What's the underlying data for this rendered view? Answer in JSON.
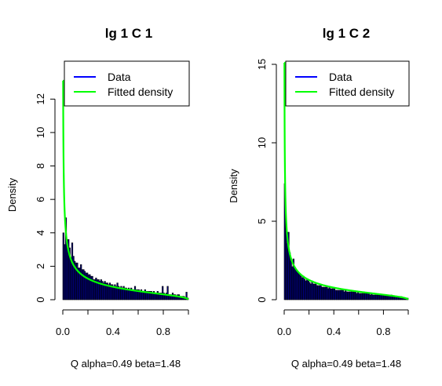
{
  "chart_data": [
    {
      "type": "bar",
      "title": "lg 1 C 1",
      "ylabel": "Density",
      "xlabel": "Q alpha=0.49 beta=1.48",
      "xlim": [
        0,
        1
      ],
      "ylim": [
        0,
        13
      ],
      "xticks": [
        0.0,
        0.4,
        0.8
      ],
      "xtick_labels": [
        "0.0",
        "0.4",
        "0.8"
      ],
      "yticks": [
        0,
        2,
        4,
        6,
        8,
        10,
        12
      ],
      "ytick_labels": [
        "0",
        "2",
        "4",
        "6",
        "8",
        "10",
        "12"
      ],
      "legend": {
        "position": "top-right",
        "entries": [
          {
            "label": "Data",
            "color": "#0000ff"
          },
          {
            "label": "Fitted density",
            "color": "#00ff00"
          }
        ]
      },
      "fit": {
        "alpha": 0.49,
        "beta": 1.48,
        "color": "#00ff00"
      },
      "bar_color": "#00007f",
      "bin_width": 0.01,
      "values": [
        4.0,
        3.3,
        4.9,
        3.6,
        3.6,
        3.1,
        2.5,
        3.4,
        2.6,
        2.3,
        2.2,
        2.2,
        1.9,
        1.9,
        2.1,
        1.8,
        1.8,
        1.7,
        1.6,
        1.6,
        1.5,
        1.5,
        1.4,
        1.4,
        1.2,
        1.2,
        1.3,
        1.2,
        1.2,
        1.1,
        1.2,
        1.1,
        1.0,
        1.1,
        1.0,
        1.0,
        0.9,
        1.0,
        0.9,
        0.9,
        0.8,
        0.9,
        0.8,
        1.0,
        0.8,
        0.7,
        0.8,
        0.7,
        0.8,
        0.7,
        0.7,
        0.6,
        0.7,
        0.6,
        0.7,
        0.6,
        0.6,
        0.8,
        0.6,
        0.6,
        0.6,
        0.5,
        0.6,
        0.5,
        0.5,
        0.6,
        0.5,
        0.5,
        0.5,
        0.5,
        0.5,
        0.4,
        0.5,
        0.4,
        0.4,
        0.5,
        0.4,
        0.4,
        0.4,
        0.8,
        0.4,
        0.3,
        0.4,
        0.8,
        0.3,
        0.3,
        0.3,
        0.4,
        0.3,
        0.3,
        0.2,
        0.3,
        0.3,
        0.2,
        0.2,
        0.2,
        0.2,
        0.1,
        0.45,
        0.1
      ]
    },
    {
      "type": "bar",
      "title": "lg 1 C 2",
      "ylabel": "Density",
      "xlabel": "Q alpha=0.49 beta=1.48",
      "xlim": [
        0,
        1
      ],
      "ylim": [
        0,
        15
      ],
      "xticks": [
        0.0,
        0.4,
        0.8
      ],
      "xtick_labels": [
        "0.0",
        "0.4",
        "0.8"
      ],
      "yticks": [
        0,
        5,
        10,
        15
      ],
      "ytick_labels": [
        "0",
        "5",
        "10",
        "15"
      ],
      "legend": {
        "position": "top-right",
        "entries": [
          {
            "label": "Data",
            "color": "#0000ff"
          },
          {
            "label": "Fitted density",
            "color": "#00ff00"
          }
        ]
      },
      "fit": {
        "alpha": 0.49,
        "beta": 1.48,
        "color": "#00ff00"
      },
      "bar_color": "#00007f",
      "bin_width": 0.01,
      "values": [
        7.4,
        5.2,
        3.6,
        4.3,
        3.0,
        2.5,
        2.1,
        2.6,
        2.0,
        1.9,
        1.8,
        1.7,
        1.6,
        1.5,
        1.4,
        1.5,
        1.3,
        1.2,
        1.3,
        1.2,
        1.1,
        1.0,
        1.2,
        1.0,
        1.0,
        1.0,
        0.9,
        0.9,
        0.9,
        0.9,
        0.8,
        0.8,
        0.8,
        0.8,
        0.8,
        0.7,
        0.8,
        0.7,
        0.7,
        0.7,
        0.7,
        0.6,
        0.6,
        0.6,
        0.6,
        0.6,
        0.6,
        0.6,
        0.5,
        0.6,
        0.5,
        0.5,
        0.5,
        0.5,
        0.5,
        0.5,
        0.5,
        0.5,
        0.4,
        0.5,
        0.4,
        0.4,
        0.4,
        0.4,
        0.4,
        0.4,
        0.4,
        0.4,
        0.4,
        0.3,
        0.4,
        0.3,
        0.3,
        0.3,
        0.3,
        0.3,
        0.3,
        0.3,
        0.3,
        0.3,
        0.3,
        0.3,
        0.3,
        0.3,
        0.3,
        0.2,
        0.3,
        0.2,
        0.2,
        0.2,
        0.2,
        0.2,
        0.2,
        0.2,
        0.2,
        0.1,
        0.1,
        0.1,
        0.1,
        0.1
      ]
    }
  ]
}
